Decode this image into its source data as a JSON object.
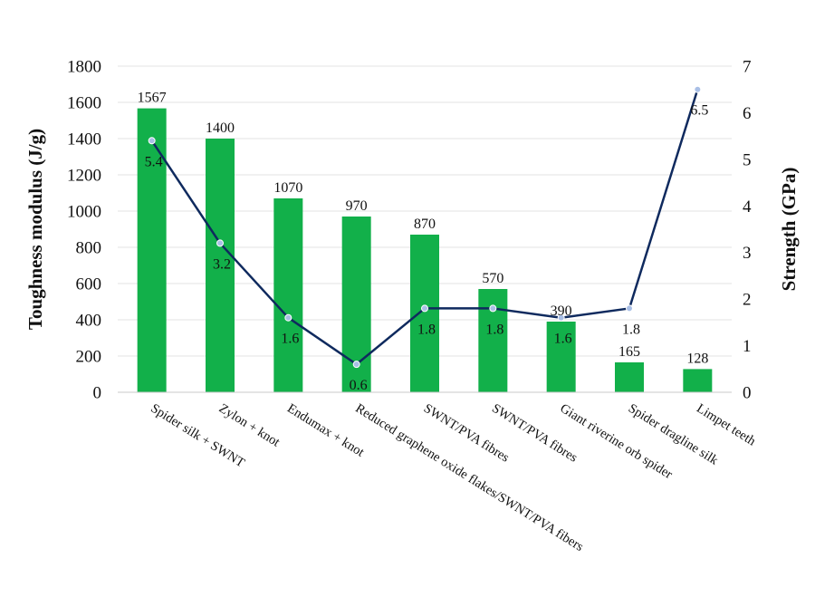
{
  "chart_data": {
    "type": "bar",
    "categories": [
      "Spider silk + SWNT",
      "Zylon + knot",
      "Endumax + knot",
      "Reduced graphene oxide flakes/SWNT/PVA fibers",
      "SWNT/PVA fibres",
      "SWNT/PVA fibres",
      "Giant riverine orb spider",
      "Spider dragline silk",
      "Limpet teeth"
    ],
    "series": [
      {
        "type": "bar",
        "axis": "left",
        "color": "#12b04a",
        "values": [
          1567,
          1400,
          1070,
          970,
          870,
          570,
          390,
          165,
          128
        ],
        "value_labels": [
          "1567",
          "1400",
          "1070",
          "970",
          "870",
          "570",
          "390",
          "165",
          "128"
        ]
      },
      {
        "type": "line",
        "axis": "right",
        "color": "#0f2a5e",
        "marker_color": "#a9bfe6",
        "values": [
          5.4,
          3.2,
          1.6,
          0.6,
          1.8,
          1.8,
          1.6,
          1.8,
          6.5
        ],
        "value_labels": [
          "5.4",
          "3.2",
          "1.6",
          "0.6",
          "1.8",
          "1.8",
          "1.6",
          "1.8",
          "6.5"
        ]
      }
    ],
    "ylabel": "Toughness modulus (J/g)",
    "ylabel_right": "Strength (GPa)",
    "ylim": [
      0,
      1800
    ],
    "ylim_right": [
      0,
      7
    ],
    "yticks": [
      "0",
      "200",
      "400",
      "600",
      "800",
      "1000",
      "1200",
      "1400",
      "1600",
      "1800"
    ],
    "yticks_right": [
      "0",
      "1",
      "2",
      "3",
      "4",
      "5",
      "6",
      "7"
    ],
    "grid": true,
    "legend": "none"
  }
}
